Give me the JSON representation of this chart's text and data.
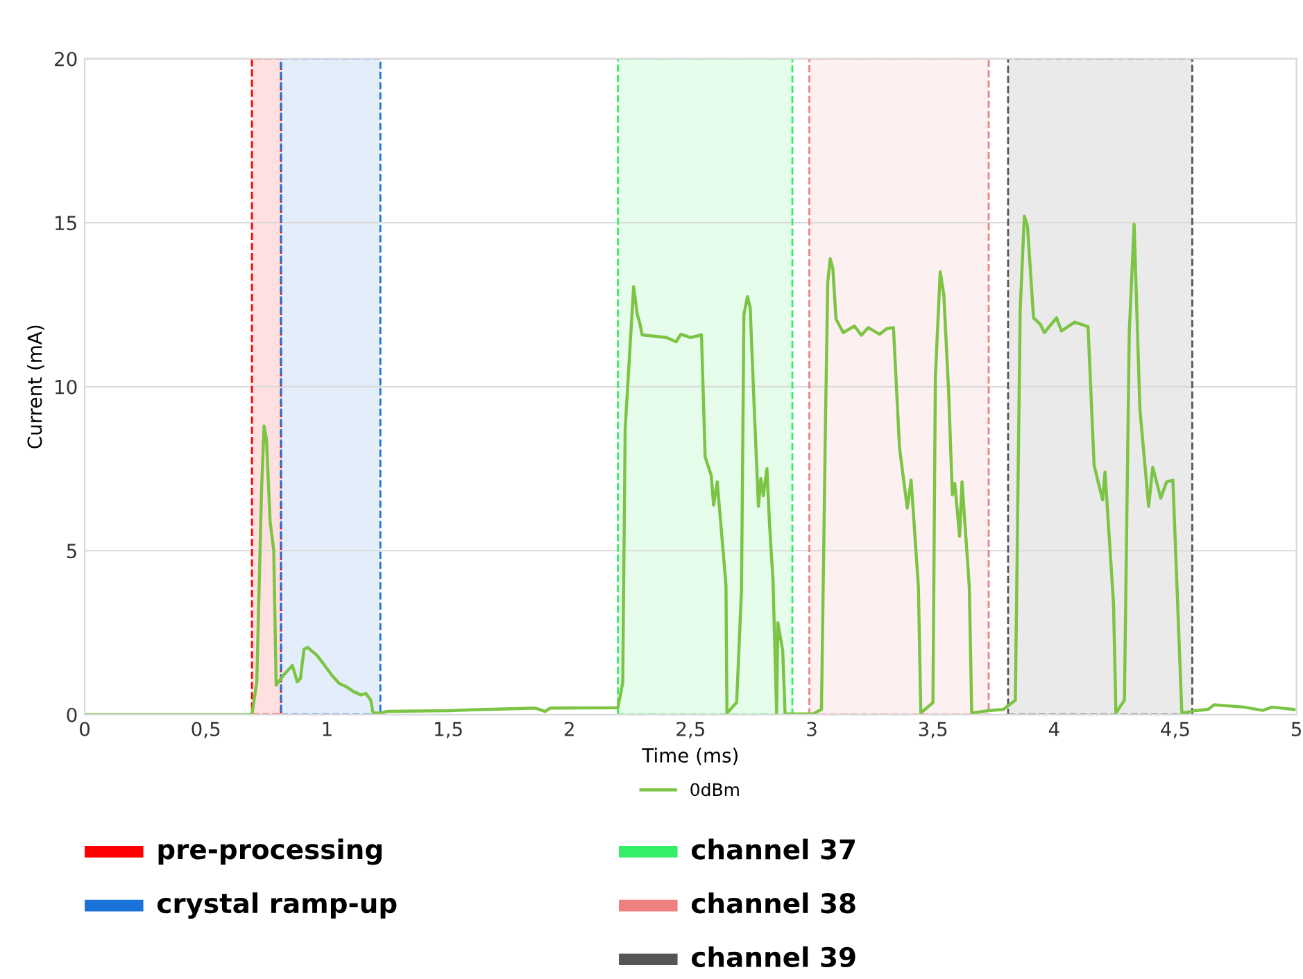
{
  "chart_data": {
    "type": "line",
    "xlabel": "Time (ms)",
    "ylabel": "Current (mA)",
    "xlim": [
      0,
      5
    ],
    "ylim": [
      0,
      20
    ],
    "xticks": [
      0,
      {
        "value": 0.5,
        "label": "0,5"
      },
      1,
      {
        "value": 1.5,
        "label": "1,5"
      },
      2,
      {
        "value": 2.5,
        "label": "2,5"
      },
      3,
      {
        "value": 3.5,
        "label": "3,5"
      },
      4,
      {
        "value": 4.5,
        "label": "4,5"
      },
      5
    ],
    "yticks": [
      0,
      5,
      10,
      15,
      20
    ],
    "grid": "y",
    "legend": "bottom",
    "line_style": "solid",
    "marker": "none",
    "series": [
      {
        "name": "0dBm",
        "color": "#7cc444",
        "x": [
          0,
          0.69,
          0.71,
          0.73,
          0.74,
          0.75,
          0.765,
          0.78,
          0.79,
          0.82,
          0.857,
          0.877,
          0.89,
          0.905,
          0.92,
          0.96,
          0.97,
          1.0,
          1.02,
          1.05,
          1.08,
          1.11,
          1.14,
          1.16,
          1.18,
          1.19,
          1.22,
          1.25,
          1.5,
          1.6,
          1.86,
          1.9,
          1.92,
          2.2,
          2.22,
          2.23,
          2.25,
          2.265,
          2.28,
          2.29,
          2.3,
          2.34,
          2.4,
          2.44,
          2.46,
          2.5,
          2.545,
          2.56,
          2.585,
          2.595,
          2.61,
          2.646,
          2.65,
          2.69,
          2.71,
          2.72,
          2.735,
          2.746,
          2.76,
          2.78,
          2.79,
          2.8,
          2.815,
          2.826,
          2.84,
          2.855,
          2.86,
          2.88,
          2.89,
          3.005,
          3.04,
          3.057,
          3.066,
          3.076,
          3.087,
          3.1,
          3.13,
          3.176,
          3.205,
          3.233,
          3.28,
          3.31,
          3.337,
          3.362,
          3.394,
          3.41,
          3.44,
          3.45,
          3.5,
          3.51,
          3.53,
          3.545,
          3.565,
          3.58,
          3.59,
          3.61,
          3.62,
          3.65,
          3.66,
          3.725,
          3.79,
          3.84,
          3.86,
          3.877,
          3.89,
          3.915,
          3.943,
          3.96,
          4.01,
          4.03,
          4.085,
          4.14,
          4.165,
          4.2,
          4.21,
          4.245,
          4.255,
          4.29,
          4.31,
          4.33,
          4.354,
          4.39,
          4.407,
          4.44,
          4.464,
          4.49,
          4.527,
          4.58,
          4.635,
          4.66,
          4.785,
          4.86,
          4.9,
          4.99
        ],
        "values": [
          0,
          0,
          1.0,
          6.9,
          8.8,
          8.4,
          5.9,
          5.0,
          0.9,
          1.2,
          1.5,
          1.0,
          1.1,
          2.0,
          2.05,
          1.8,
          1.7,
          1.4,
          1.2,
          0.95,
          0.85,
          0.7,
          0.6,
          0.65,
          0.45,
          0.05,
          0.05,
          0.1,
          0.12,
          0.15,
          0.2,
          0.1,
          0.2,
          0.21,
          0.98,
          8.7,
          11.2,
          13.05,
          12.2,
          11.95,
          11.58,
          11.55,
          11.5,
          11.37,
          11.6,
          11.5,
          11.58,
          7.86,
          7.3,
          6.39,
          7.1,
          3.95,
          0.05,
          0.37,
          3.8,
          12.2,
          12.75,
          12.4,
          9.8,
          6.35,
          7.2,
          6.67,
          7.5,
          5.77,
          4.1,
          0.05,
          2.8,
          1.96,
          0.02,
          0.02,
          0.16,
          9.1,
          13.19,
          13.9,
          13.6,
          12.06,
          11.65,
          11.85,
          11.57,
          11.8,
          11.6,
          11.77,
          11.8,
          8.14,
          6.3,
          7.15,
          3.9,
          0.05,
          0.37,
          10.3,
          13.5,
          12.8,
          9.8,
          6.7,
          7.05,
          5.44,
          7.1,
          3.9,
          0.05,
          0.12,
          0.16,
          0.44,
          12.35,
          15.2,
          14.9,
          12.1,
          11.9,
          11.65,
          12.1,
          11.7,
          11.97,
          11.83,
          7.6,
          6.55,
          7.4,
          3.4,
          0.05,
          0.44,
          11.65,
          14.95,
          9.3,
          6.35,
          7.54,
          6.6,
          7.1,
          7.15,
          0.05,
          0.12,
          0.16,
          0.3,
          0.23,
          0.13,
          0.23,
          0.16
        ]
      }
    ],
    "bands": [
      {
        "axis": "x",
        "from": 0.69,
        "to": 0.81,
        "label": "pre-processing",
        "color": "#ff0000"
      },
      {
        "axis": "x",
        "from": 0.81,
        "to": 1.22,
        "label": "crystal ramp-up",
        "color": "#1a73d9"
      },
      {
        "axis": "x",
        "from": 2.2,
        "to": 2.92,
        "label": "channel 37",
        "color": "#33ee66"
      },
      {
        "axis": "x",
        "from": 2.99,
        "to": 3.73,
        "label": "channel 38",
        "color": "#f08080"
      },
      {
        "axis": "x",
        "from": 3.81,
        "to": 4.57,
        "label": "channel 39",
        "color": "#555555"
      }
    ]
  }
}
